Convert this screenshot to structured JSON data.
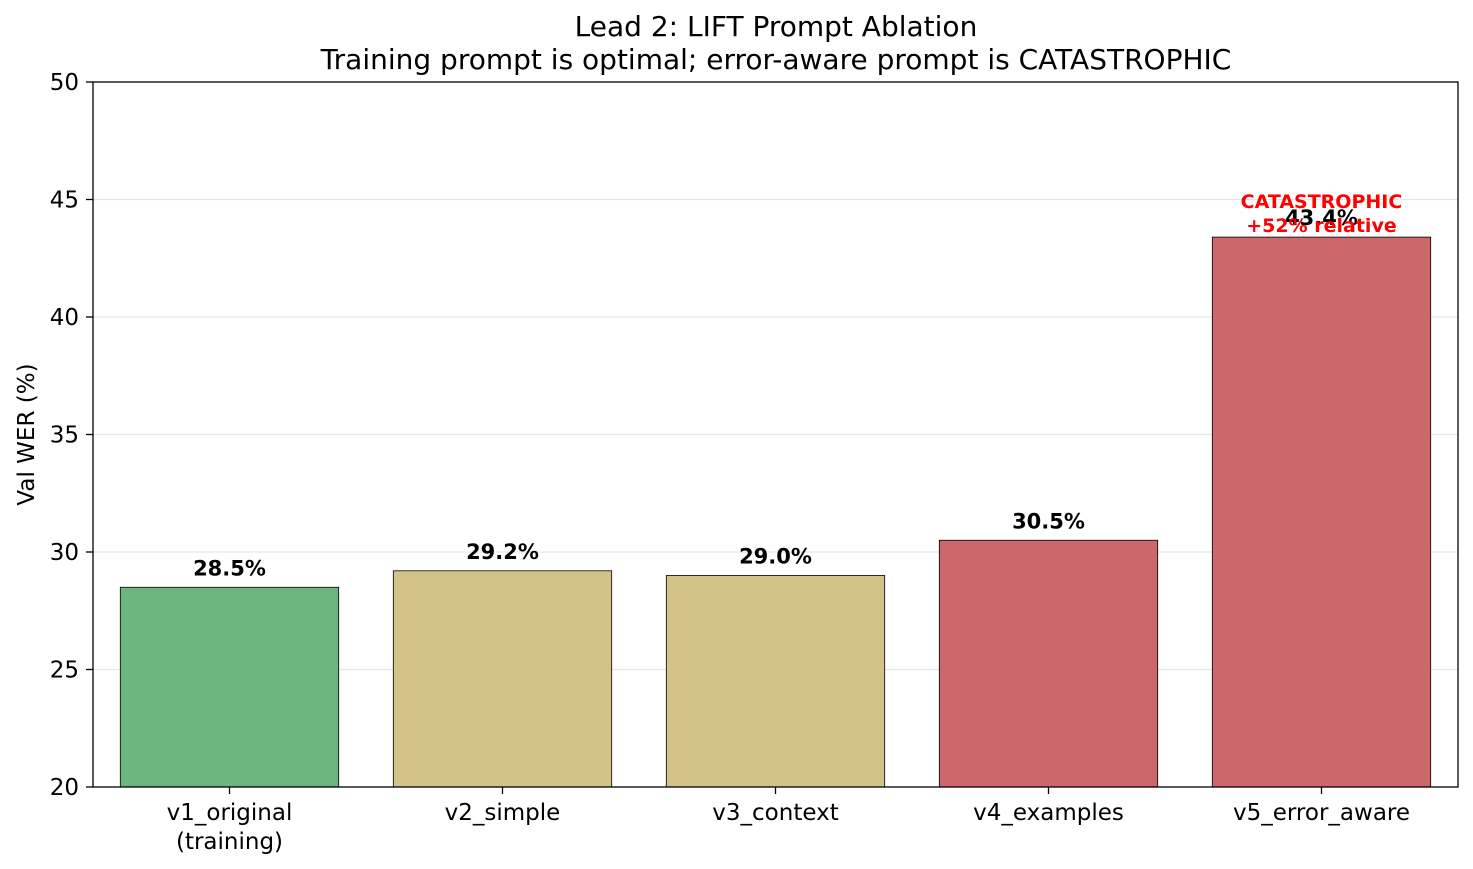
{
  "chart_data": {
    "type": "bar",
    "title": "Lead 2: LIFT Prompt Ablation",
    "subtitle": "Training prompt is optimal; error-aware prompt is CATASTROPHIC",
    "xlabel": "",
    "ylabel": "Val WER (%)",
    "ylim": [
      20,
      50
    ],
    "yticks": [
      20,
      25,
      30,
      35,
      40,
      45,
      50
    ],
    "grid": "y",
    "categories": [
      [
        "v1_original",
        "(training)"
      ],
      [
        "v2_simple"
      ],
      [
        "v3_context"
      ],
      [
        "v4_examples"
      ],
      [
        "v5_error_aware"
      ]
    ],
    "values": [
      28.5,
      29.2,
      29.0,
      30.5,
      43.4
    ],
    "value_labels": [
      "28.5%",
      "29.2%",
      "29.0%",
      "30.5%",
      "43.4%"
    ],
    "colors": [
      "#6db57e",
      "#d4c389",
      "#d4c389",
      "#cc686b",
      "#cc686b"
    ],
    "annotation": {
      "bar_index": 4,
      "lines": [
        "CATASTROPHIC",
        "+52% relative"
      ],
      "color": "#ff0000"
    }
  }
}
